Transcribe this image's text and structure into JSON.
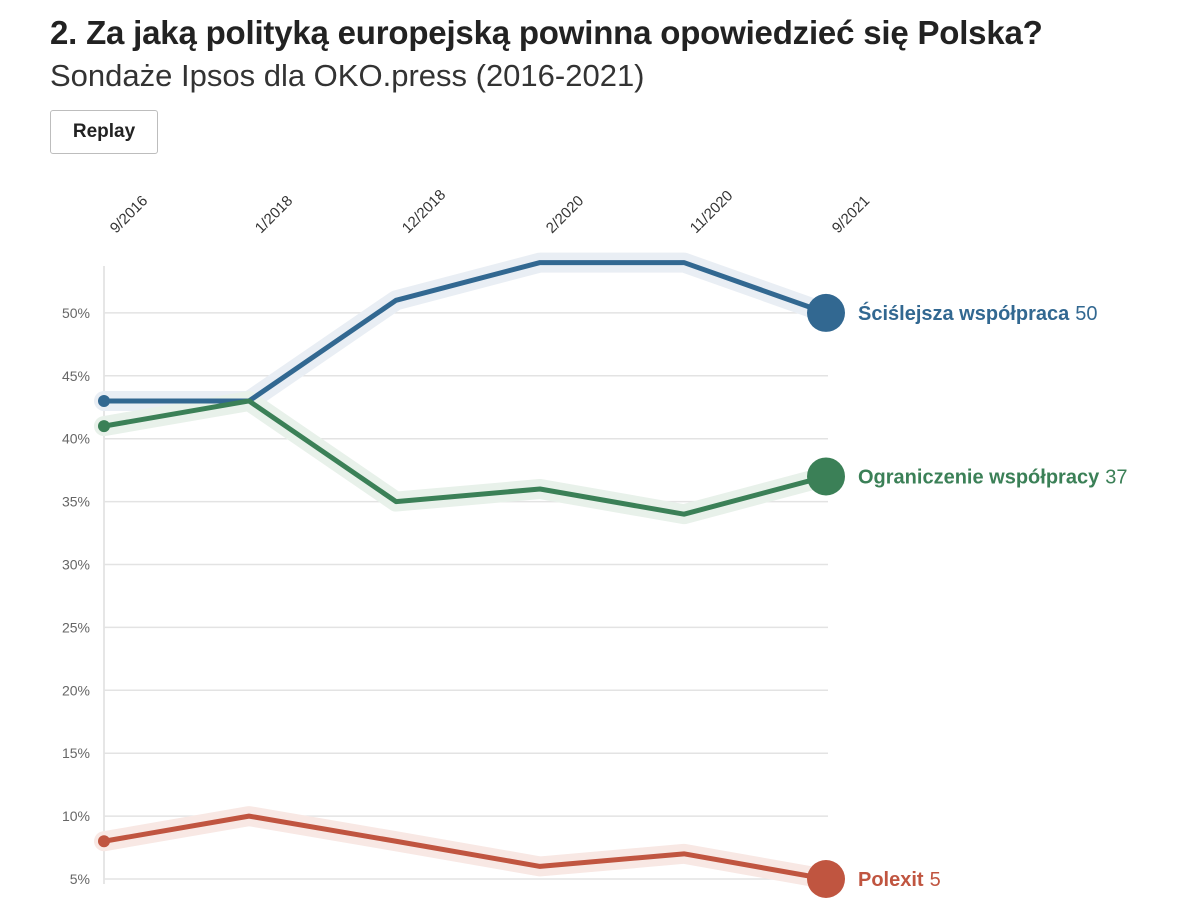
{
  "header": {
    "title": "2. Za jaką polityką europejską powinna opowiedzieć się Polska?",
    "subtitle": "Sondaże Ipsos dla OKO.press (2016-2021)"
  },
  "controls": {
    "replay_label": "Replay"
  },
  "chart_data": {
    "type": "line",
    "categories": [
      "9/2016",
      "1/2018",
      "12/2018",
      "2/2020",
      "11/2020",
      "9/2021"
    ],
    "y_ticks": [
      "5%",
      "10%",
      "15%",
      "20%",
      "25%",
      "30%",
      "35%",
      "40%",
      "45%",
      "50%"
    ],
    "ylim": [
      5,
      55
    ],
    "y_tick_values": [
      5,
      10,
      15,
      20,
      25,
      30,
      35,
      40,
      45,
      50
    ],
    "grid": true,
    "series": [
      {
        "name": "Ściślejsza współpraca",
        "values": [
          43,
          43,
          51,
          54,
          54,
          50
        ],
        "color": "#326891",
        "halo": "#e9eef4",
        "last_label": "50"
      },
      {
        "name": "Ograniczenie współpracy",
        "values": [
          41,
          43,
          35,
          36,
          34,
          37
        ],
        "color": "#3b8057",
        "halo": "#e8f1ea",
        "last_label": "37"
      },
      {
        "name": "Polexit",
        "values": [
          8,
          10,
          8,
          6,
          7,
          5
        ],
        "color": "#c05540",
        "halo": "#f8e8e4",
        "last_label": "5"
      }
    ]
  }
}
